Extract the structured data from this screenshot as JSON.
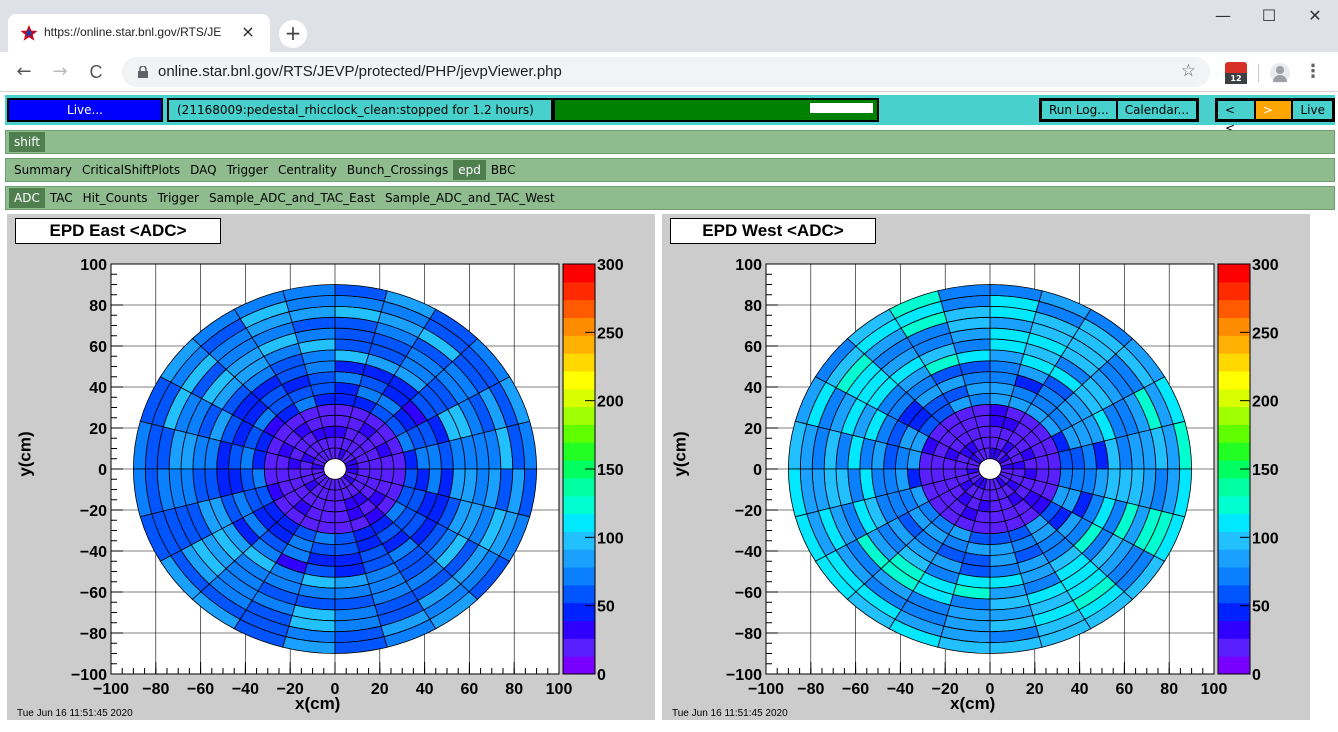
{
  "browser": {
    "tab_title": "https://online.star.bnl.gov/RTS/JE",
    "tab_close": "×",
    "new_tab": "+",
    "url": "online.star.bnl.gov/RTS/JEVP/protected/PHP/jevpViewer.php",
    "window_controls": {
      "minimize": "—",
      "maximize": "☐",
      "close": "✕"
    },
    "nav": {
      "back": "←",
      "forward": "→",
      "reload": "C"
    },
    "bookmark_star": "☆",
    "extension_badge": "12",
    "menu": "⋮"
  },
  "controls": {
    "live_label": "Live...",
    "status_text": "(21168009:pedestal_rhicclock_clean:stopped for 1.2 hours)",
    "progress_fraction": 0.8,
    "run_log": "Run Log...",
    "calendar": "Calendar...",
    "prev": "< <",
    "next": "> >",
    "live_short": "Live"
  },
  "menu_level1": [
    "shift"
  ],
  "menu_level2": [
    "Summary",
    "CriticalShiftPlots",
    "DAQ",
    "Trigger",
    "Centrality",
    "Bunch_Crossings",
    "epd",
    "BBC"
  ],
  "menu_level2_selected": "epd",
  "menu_level3": [
    "ADC",
    "TAC",
    "Hit_Counts",
    "Trigger",
    "Sample_ADC_and_TAC_East",
    "Sample_ADC_and_TAC_West"
  ],
  "menu_level3_selected": "ADC",
  "plots": [
    {
      "title": "EPD East <ADC>",
      "date": "Tue Jun 16 11:51:45 2020"
    },
    {
      "title": "EPD West <ADC>",
      "date": "Tue Jun 16 11:51:45 2020"
    }
  ],
  "colors": {
    "blue": "#0000ff",
    "cyan": "#48d1cc",
    "green": "#008000",
    "menu": "#8fbc8f",
    "selected": "#4f7f4f",
    "orange": "#ffa500"
  },
  "chart_data": [
    {
      "type": "heatmap",
      "title": "EPD East <ADC>",
      "xlabel": "x(cm)",
      "ylabel": "y(cm)",
      "xlim": [
        -100,
        100
      ],
      "ylim": [
        -100,
        100
      ],
      "zlim": [
        0,
        300
      ],
      "xticks": [
        -100,
        -80,
        -60,
        -40,
        -20,
        0,
        20,
        40,
        60,
        80,
        100
      ],
      "yticks": [
        -100,
        -80,
        -60,
        -40,
        -20,
        0,
        20,
        40,
        60,
        80,
        100
      ],
      "zticks": [
        0,
        50,
        100,
        150,
        200,
        250,
        300
      ],
      "rings": 16,
      "sectors": 24,
      "inner_ring_level": 22,
      "middle_ring_level": 55,
      "outer_ring_level": 75,
      "grid": true
    },
    {
      "type": "heatmap",
      "title": "EPD West <ADC>",
      "xlabel": "x(cm)",
      "ylabel": "y(cm)",
      "xlim": [
        -100,
        100
      ],
      "ylim": [
        -100,
        100
      ],
      "zlim": [
        0,
        300
      ],
      "xticks": [
        -100,
        -80,
        -60,
        -40,
        -20,
        0,
        20,
        40,
        60,
        80,
        100
      ],
      "yticks": [
        -100,
        -80,
        -60,
        -40,
        -20,
        0,
        20,
        40,
        60,
        80,
        100
      ],
      "zticks": [
        0,
        50,
        100,
        150,
        200,
        250,
        300
      ],
      "rings": 16,
      "sectors": 24,
      "inner_ring_level": 22,
      "middle_ring_level": 70,
      "outer_ring_level": 95,
      "grid": true
    }
  ]
}
